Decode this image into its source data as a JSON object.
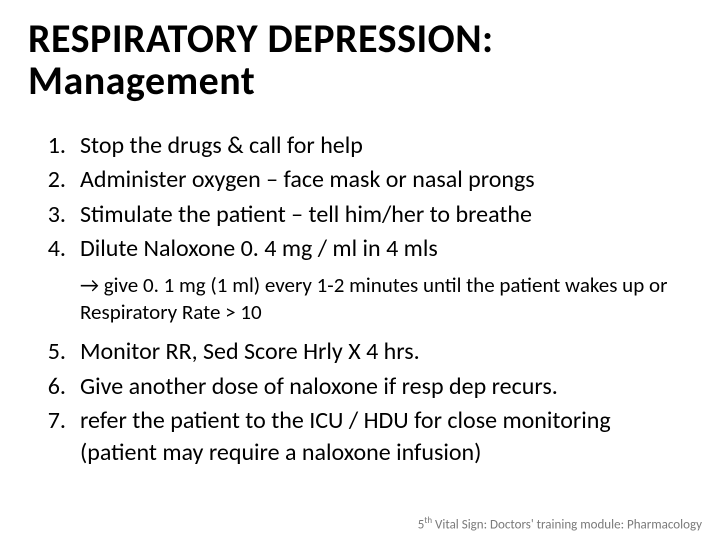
{
  "title_line1": "RESPIRATORY DEPRESSION:",
  "title_line2": "Management",
  "items": {
    "n1": "1.",
    "t1": "Stop the drugs & call for help",
    "n2": "2.",
    "t2": "Administer oxygen – face mask or nasal prongs",
    "n3": "3.",
    "t3": "Stimulate the patient – tell him/her to breathe",
    "n4": "4.",
    "t4": "Dilute Naloxone 0. 4 mg / ml in 4 mls",
    "sub": "→ give 0. 1 mg (1 ml) every 1-2 minutes until the patient wakes up or Respiratory Rate > 10",
    "n5": "5.",
    "t5": "Monitor RR, Sed Score Hrly X 4 hrs.",
    "n6": "6.",
    "t6": "Give another dose of naloxone if resp dep recurs.",
    "n7": "7.",
    "t7": "refer the patient to the ICU / HDU for close monitoring (patient may require a naloxone infusion)"
  },
  "footer_sup": "th",
  "footer_pre": "5",
  "footer_rest": " Vital Sign: Doctors' training module: Pharmacology"
}
